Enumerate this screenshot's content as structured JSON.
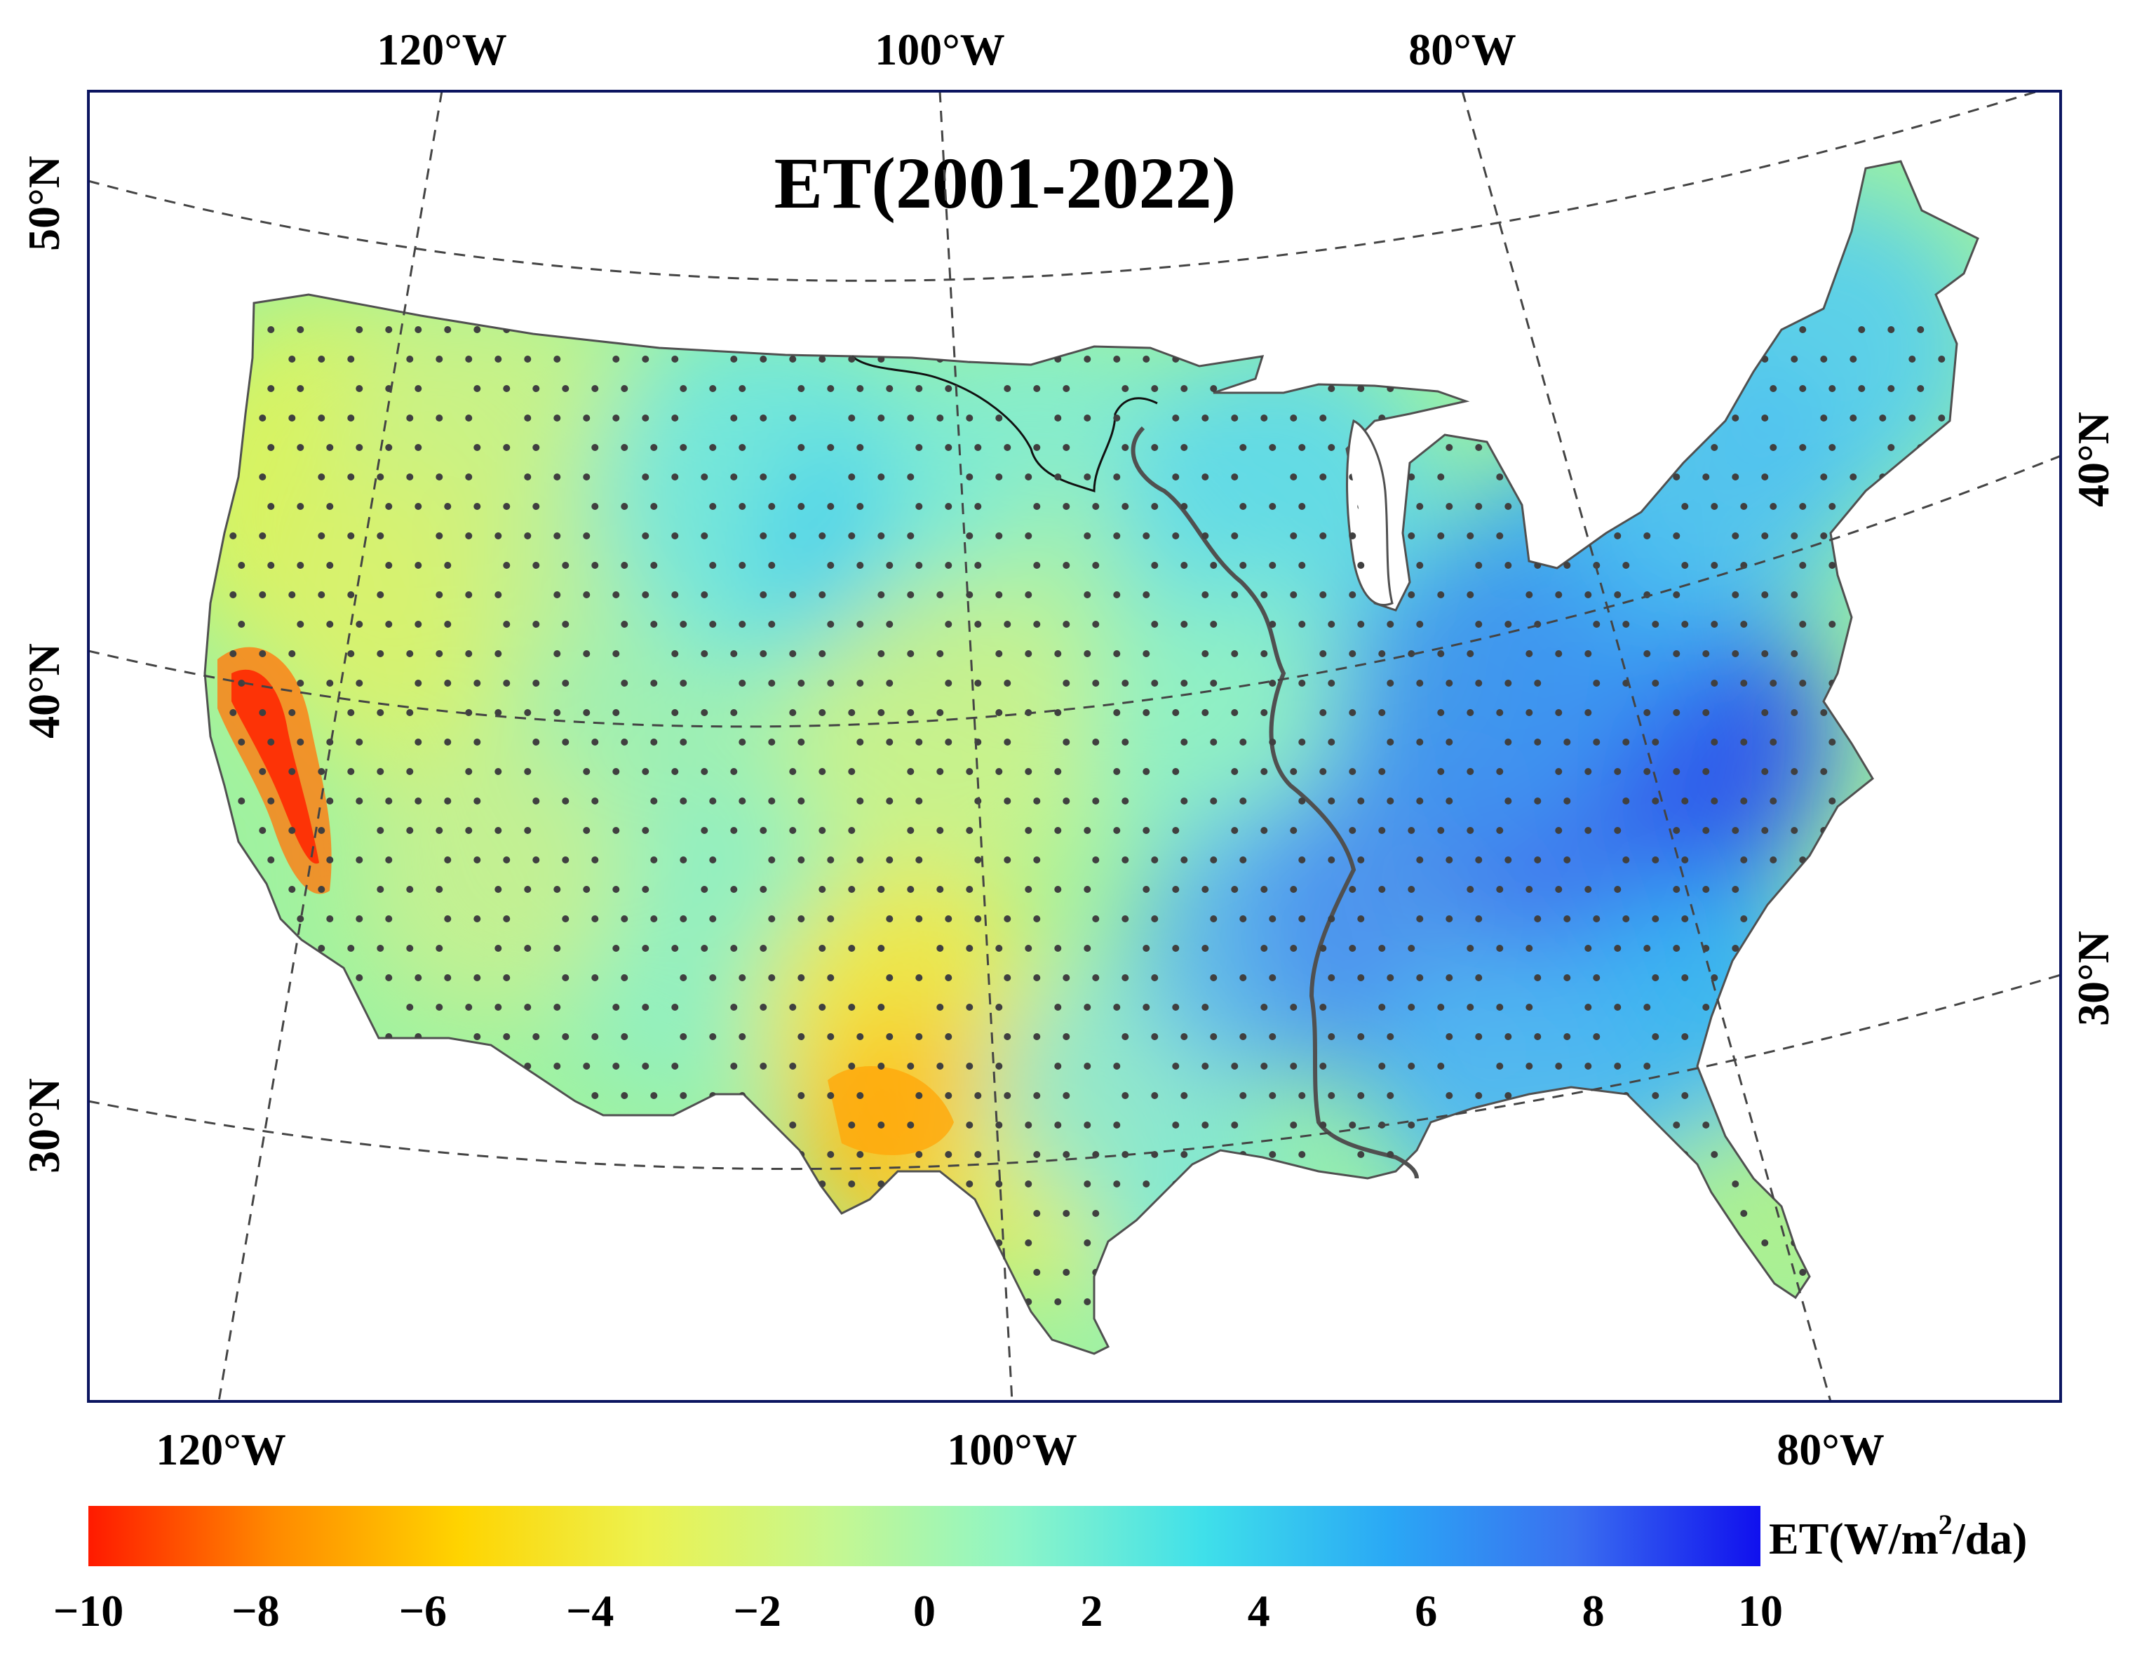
{
  "map": {
    "title": "ET(2001-2022)",
    "projection": "conic",
    "graticule_style": "dashed",
    "top_lon_labels": [
      "120°W",
      "100°W",
      "80°W"
    ],
    "bottom_lon_labels": [
      "120°W",
      "100°W",
      "80°W"
    ],
    "left_lat_labels": [
      "50°N",
      "40°N",
      "30°N"
    ],
    "right_lat_labels": [
      "40°N",
      "30°N"
    ],
    "significance_marker": "dot",
    "colors": {
      "frame": "#0b1560",
      "boundary": "#505050",
      "river": "#505050",
      "dot": "#404040",
      "graticule": "#444444"
    }
  },
  "colorbar": {
    "label_prefix": "ET(W/m",
    "label_superscript": "2",
    "label_suffix": "/da)",
    "min": -10,
    "max": 10,
    "ticks": [
      "−10",
      "−8",
      "−6",
      "−4",
      "−2",
      "0",
      "2",
      "4",
      "6",
      "8",
      "10"
    ],
    "colors": [
      "#ff1a00",
      "#ff8a00",
      "#ffd400",
      "#ecf250",
      "#c6f790",
      "#8df5c8",
      "#3fe0ea",
      "#2aa8f5",
      "#3a6ff0",
      "#1010ee"
    ]
  }
}
